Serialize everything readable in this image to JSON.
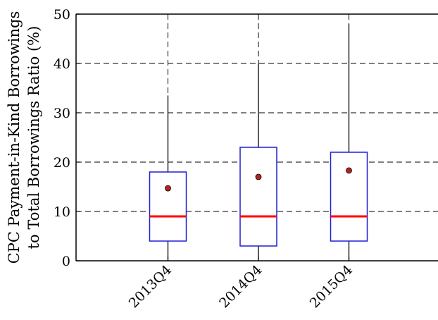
{
  "chart_data": {
    "type": "box",
    "title": "",
    "xlabel": "",
    "ylabel_lines": [
      "CPC Payment-in-Kind Borrowings",
      "to Total Borrowings Ratio (%)"
    ],
    "ylim": [
      0,
      50
    ],
    "yticks": [
      0,
      10,
      20,
      30,
      40,
      50
    ],
    "grid": true,
    "categories": [
      "2013Q4",
      "2014Q4",
      "2015Q4"
    ],
    "boxes": [
      {
        "category": "2013Q4",
        "whisker_low": 0,
        "q1": 4,
        "median": 9,
        "q3": 18,
        "whisker_high": 33.5,
        "mean": 14.7
      },
      {
        "category": "2014Q4",
        "whisker_low": 0,
        "q1": 3,
        "median": 9,
        "q3": 23,
        "whisker_high": 40,
        "mean": 17
      },
      {
        "category": "2015Q4",
        "whisker_low": 0,
        "q1": 4,
        "median": 9,
        "q3": 22,
        "whisker_high": 48,
        "mean": 18.3
      }
    ],
    "colors": {
      "box": "#1f1fd6",
      "median": "#ff0000",
      "mean": "#b22222",
      "whisker": "#000000"
    }
  }
}
